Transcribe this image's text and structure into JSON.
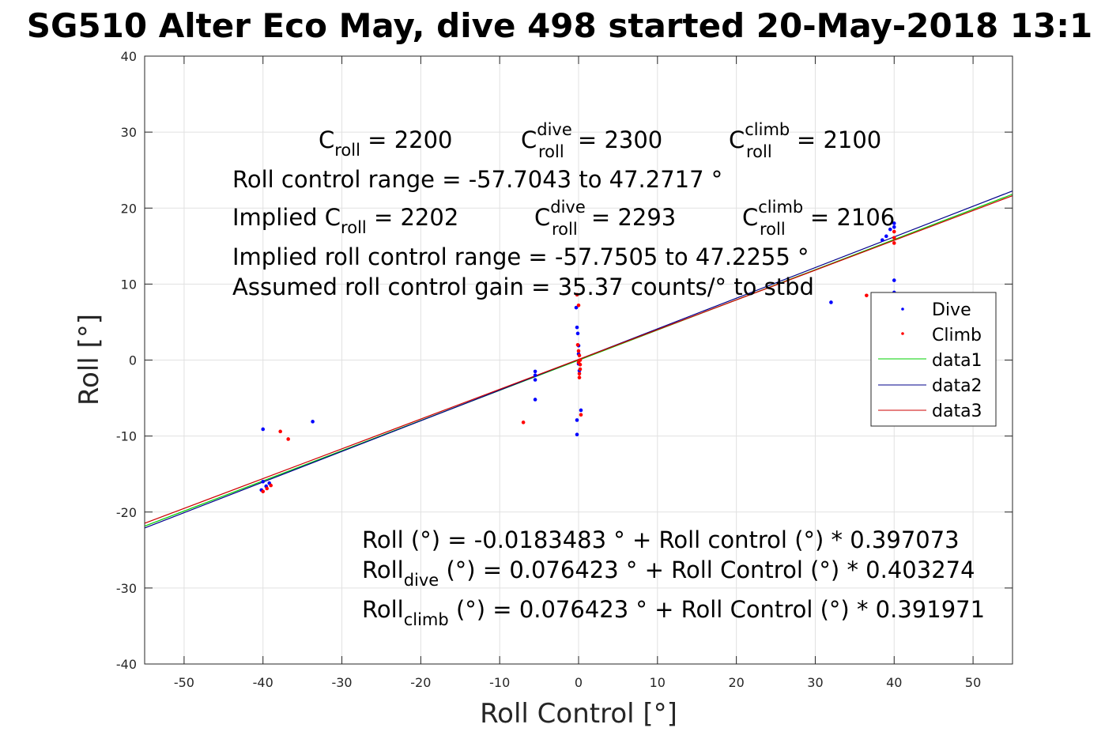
{
  "chart_data": {
    "type": "scatter",
    "title": "SG510 Alter Eco May, dive 498 started 20-May-2018 13:1",
    "xlabel": "Roll Control [°]",
    "ylabel": "Roll [°]",
    "xlim": [
      -55,
      55
    ],
    "ylim": [
      -40,
      40
    ],
    "xticks": [
      -50,
      -40,
      -30,
      -20,
      -10,
      0,
      10,
      20,
      30,
      40,
      50
    ],
    "yticks": [
      -40,
      -30,
      -20,
      -10,
      0,
      10,
      20,
      30,
      40
    ],
    "xtick_labels": [
      "-50",
      "-40",
      "-30",
      "-20",
      "-10",
      "0",
      "10",
      "20",
      "30",
      "40",
      "50"
    ],
    "ytick_labels": [
      "-40",
      "-30",
      "-20",
      "-10",
      "0",
      "10",
      "20",
      "30",
      "40"
    ],
    "grid": true,
    "legend_position": "right",
    "legend": [
      "Dive",
      "Climb",
      "data1",
      "data2",
      "data3"
    ],
    "colors": {
      "dive": "#0000ff",
      "climb": "#ff0000",
      "data1": "#00d000",
      "data2": "#00008b",
      "data3": "#cc0000"
    },
    "series": [
      {
        "name": "Dive",
        "kind": "points",
        "color": "#0000ff",
        "points": [
          [
            -40,
            -9.1
          ],
          [
            -33.7,
            -8.1
          ],
          [
            -40,
            -16.0
          ],
          [
            -39.6,
            -16.6
          ],
          [
            -39.2,
            -16.2
          ],
          [
            -40.2,
            -17.1
          ],
          [
            -5.5,
            -1.5
          ],
          [
            -5.5,
            -2.0
          ],
          [
            -5.5,
            -2.6
          ],
          [
            -5.5,
            -5.2
          ],
          [
            -0.3,
            6.9
          ],
          [
            -0.2,
            4.3
          ],
          [
            -0.1,
            3.5
          ],
          [
            0.0,
            1.9
          ],
          [
            0.0,
            0.8
          ],
          [
            0.0,
            -0.5
          ],
          [
            0.1,
            -1.4
          ],
          [
            -0.2,
            -7.9
          ],
          [
            -0.2,
            -9.8
          ],
          [
            0.3,
            -6.6
          ],
          [
            32,
            7.6
          ],
          [
            38.5,
            15.8
          ],
          [
            39.0,
            16.3
          ],
          [
            39.5,
            17.2
          ],
          [
            40.0,
            18.0
          ],
          [
            40.0,
            17.5
          ],
          [
            40.0,
            10.5
          ],
          [
            40.0,
            8.9
          ]
        ]
      },
      {
        "name": "Climb",
        "kind": "points",
        "color": "#ff0000",
        "points": [
          [
            -37.8,
            -9.4
          ],
          [
            -36.8,
            -10.4
          ],
          [
            -40,
            -17.3
          ],
          [
            -39.5,
            -16.9
          ],
          [
            -39.0,
            -16.5
          ],
          [
            -7.0,
            -8.2
          ],
          [
            -0.2,
            8.6
          ],
          [
            0.0,
            7.2
          ],
          [
            -0.1,
            2.0
          ],
          [
            0.0,
            1.2
          ],
          [
            0.1,
            0.6
          ],
          [
            0.2,
            0.0
          ],
          [
            0.2,
            -0.6
          ],
          [
            0.2,
            -1.2
          ],
          [
            0.1,
            -1.8
          ],
          [
            0.1,
            -2.3
          ],
          [
            0.0,
            -0.3
          ],
          [
            0.3,
            -7.2
          ],
          [
            36.5,
            8.5
          ],
          [
            40.0,
            16.9
          ],
          [
            40.0,
            16.1
          ],
          [
            40.0,
            15.4
          ]
        ]
      },
      {
        "name": "data1",
        "kind": "line",
        "color": "#00d000",
        "intercept": -0.0183483,
        "slope": 0.397073
      },
      {
        "name": "data2",
        "kind": "line",
        "color": "#00008b",
        "intercept": 0.076423,
        "slope": 0.403274
      },
      {
        "name": "data3",
        "kind": "line",
        "color": "#cc0000",
        "intercept": 0.076423,
        "slope": 0.391971
      }
    ],
    "annotations": {
      "c_roll": {
        "base": "C",
        "sub": "roll",
        "value": " = 2200"
      },
      "c_roll_dive": {
        "base": "C",
        "sup": "dive",
        "sub": "roll",
        "value": " = 2300"
      },
      "c_roll_climb": {
        "base": "C",
        "sup": "climb",
        "sub": "roll",
        "value": " = 2100"
      },
      "roll_control_range": "Roll control range = -57.7043 to 47.2717 °",
      "implied_prefix": "Implied C",
      "implied_sub": "roll",
      "implied_value": " = 2202",
      "implied_dive": {
        "base": "C",
        "sup": "dive",
        "sub": "roll",
        "value": " = 2293"
      },
      "implied_climb": {
        "base": "C",
        "sup": "climb",
        "sub": "roll",
        "value": " = 2106"
      },
      "implied_range": "Implied roll control range = -57.7505 to 47.2255 °",
      "gain": "Assumed roll control gain = 35.37 counts/° to stbd",
      "fit_all": "Roll (°) = -0.0183483 ° + Roll control (°) * 0.397073",
      "fit_dive": {
        "base": "Roll",
        "sub": "dive",
        "rest": " (°) = 0.076423 ° + Roll Control (°) * 0.403274"
      },
      "fit_climb": {
        "base": "Roll",
        "sub": "climb",
        "rest": " (°) = 0.076423 ° + Roll Control (°) * 0.391971"
      }
    }
  }
}
